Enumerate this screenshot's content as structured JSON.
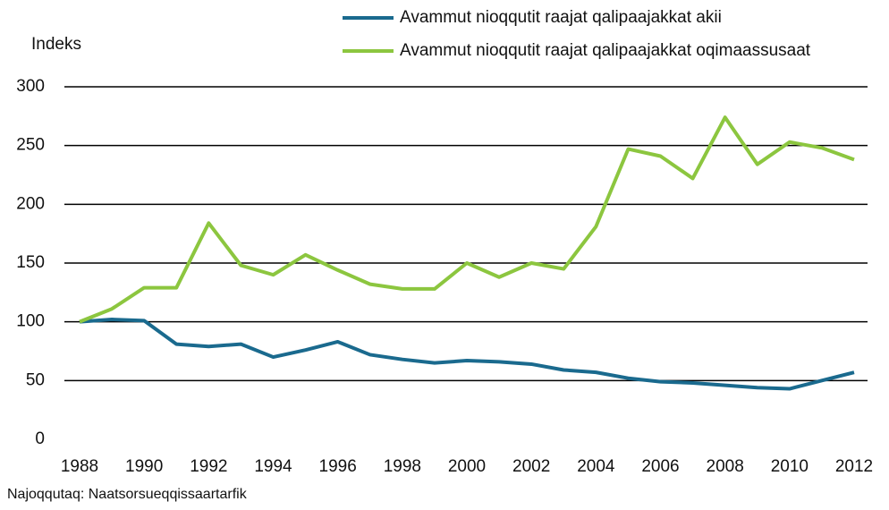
{
  "chart_data": {
    "type": "line",
    "y_label": "Indeks",
    "source": "Najoqqutaq: Naatsorsueqqissaartarfik",
    "x": [
      1988,
      1989,
      1990,
      1991,
      1992,
      1993,
      1994,
      1995,
      1996,
      1997,
      1998,
      1999,
      2000,
      2001,
      2002,
      2003,
      2004,
      2005,
      2006,
      2007,
      2008,
      2009,
      2010,
      2011,
      2012
    ],
    "series": [
      {
        "name": "Avammut nioqqutit raajat qalipaajakkat akii",
        "color": "#1a6a8e",
        "values": [
          100,
          102,
          101,
          81,
          79,
          81,
          70,
          76,
          83,
          72,
          68,
          65,
          67,
          66,
          64,
          59,
          57,
          52,
          49,
          48,
          46,
          44,
          43,
          50,
          57
        ]
      },
      {
        "name": "Avammut nioqqutit raajat qalipaajakkat oqimaassusaat",
        "color": "#8cc63f",
        "values": [
          100,
          111,
          129,
          129,
          184,
          148,
          140,
          157,
          144,
          132,
          128,
          128,
          150,
          138,
          150,
          145,
          181,
          247,
          241,
          222,
          274,
          234,
          253,
          248,
          238
        ]
      }
    ],
    "xlim": [
      1988,
      2012
    ],
    "xticks": [
      1988,
      1990,
      1992,
      1994,
      1996,
      1998,
      2000,
      2002,
      2004,
      2006,
      2008,
      2010,
      2012
    ],
    "ylim": [
      0,
      300
    ],
    "yticks": [
      0,
      50,
      100,
      150,
      200,
      250,
      300
    ],
    "grid": true,
    "legend": "top"
  }
}
